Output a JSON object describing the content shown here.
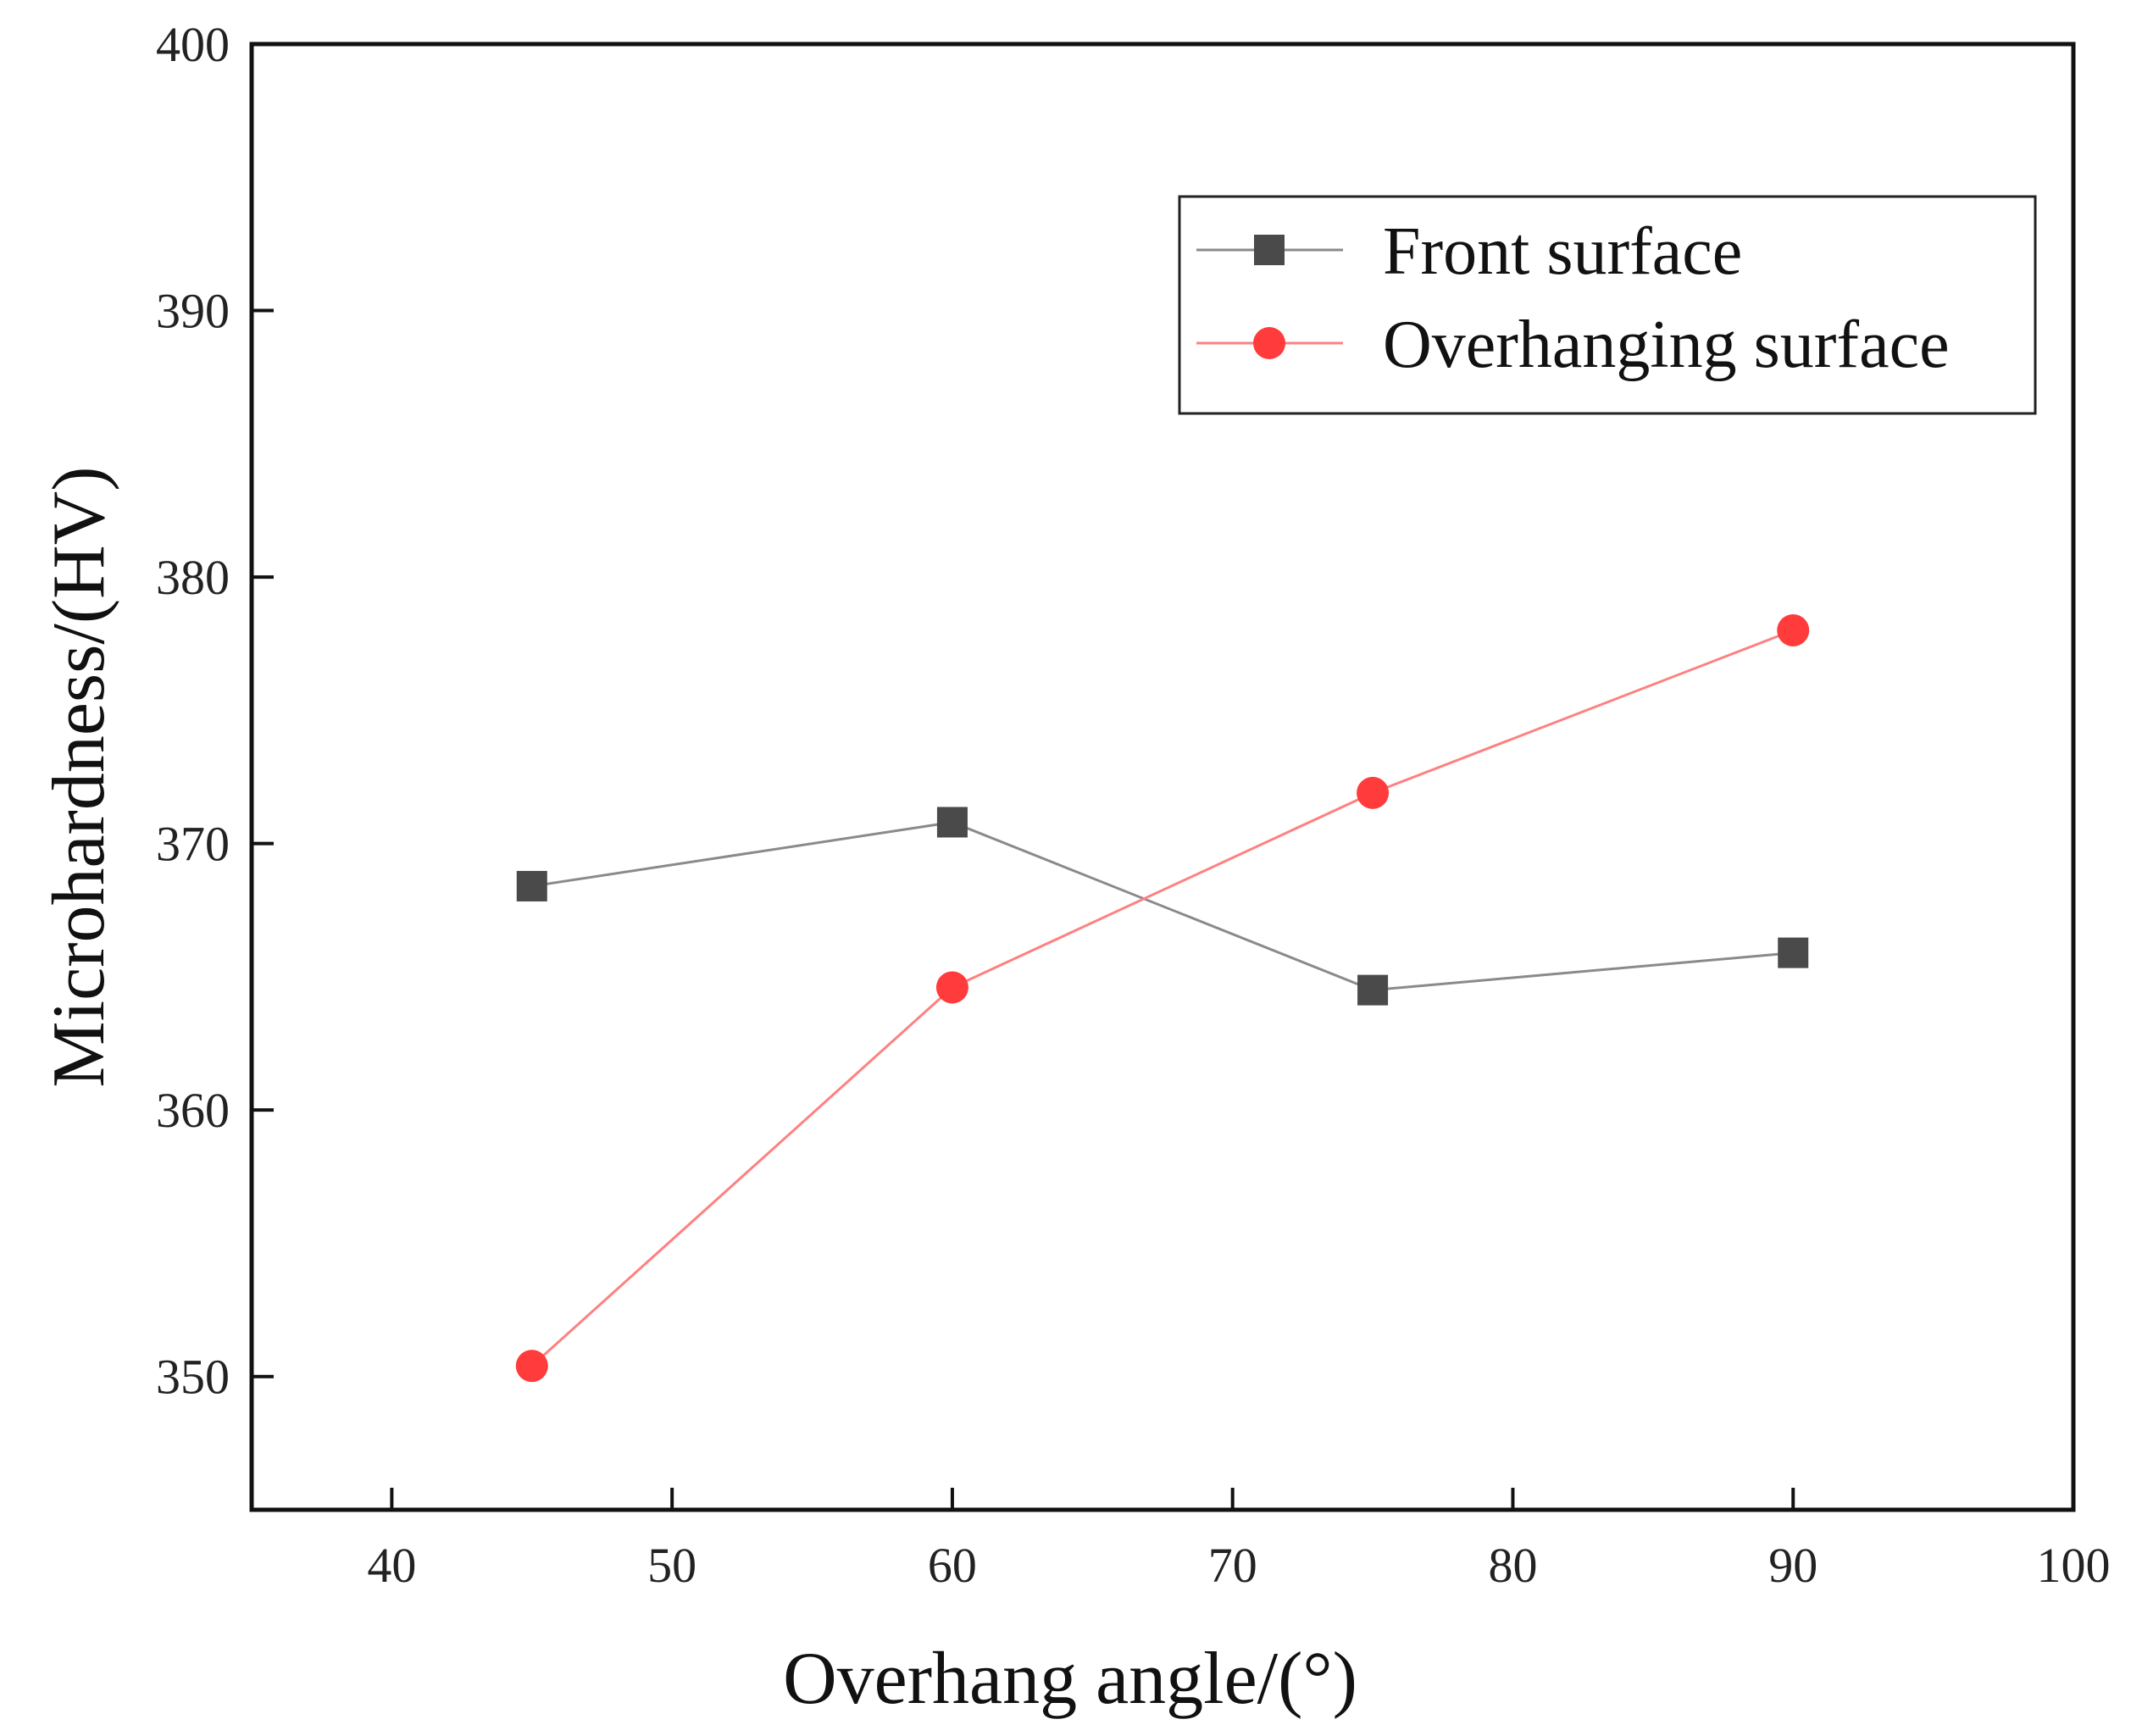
{
  "chart_data": {
    "type": "line",
    "title": "",
    "xlabel": "Overhang angle/(°)",
    "ylabel": "Microhardness/(HV)",
    "xlim": [
      35,
      100
    ],
    "ylim": [
      345,
      400
    ],
    "xticks": [
      40,
      50,
      60,
      70,
      80,
      90,
      100
    ],
    "yticks": [
      350,
      360,
      370,
      380,
      390,
      400
    ],
    "x": [
      45,
      60,
      75,
      90
    ],
    "grid": false,
    "legend_position": "top-right",
    "series": [
      {
        "name": "Front surface",
        "marker": "square",
        "color": "#4a4a4a",
        "line_color": "#8a8a8a",
        "values": [
          368.4,
          370.8,
          364.5,
          365.9
        ]
      },
      {
        "name": "Overhanging surface",
        "marker": "circle",
        "color": "#ff3b3b",
        "line_color": "#ff8080",
        "values": [
          350.4,
          364.6,
          371.9,
          378.0
        ]
      }
    ]
  }
}
